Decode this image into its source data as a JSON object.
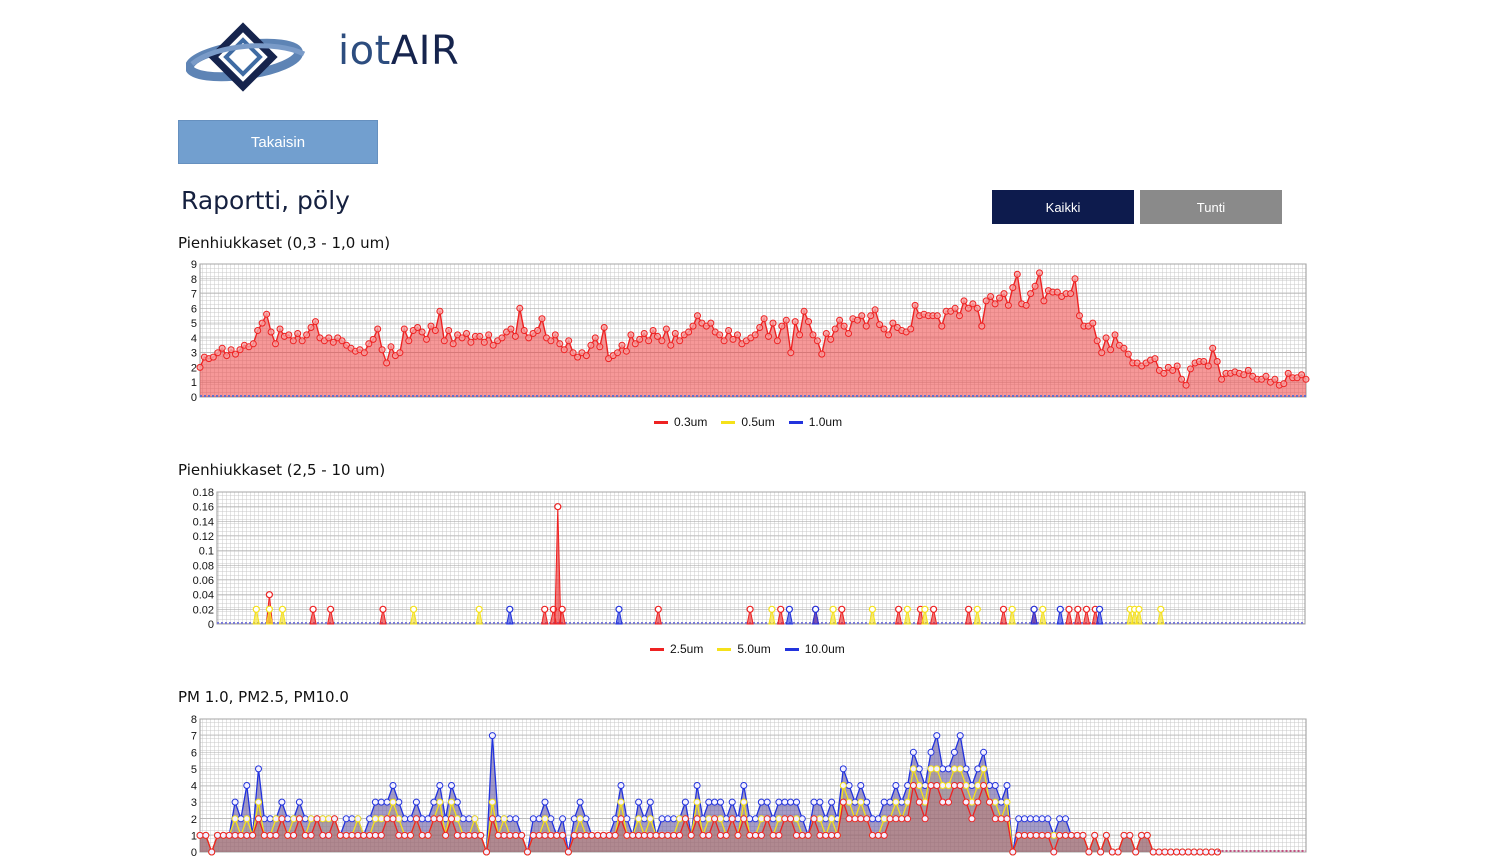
{
  "brand": {
    "name_prefix": "iot",
    "name_suffix": "AIR"
  },
  "nav": {
    "back_label": "Takaisin"
  },
  "page": {
    "title": "Raportti, pöly"
  },
  "range_toggle": {
    "all_label": "Kaikki",
    "hour_label": "Tunti",
    "selected": "Kaikki"
  },
  "colors": {
    "red": "#ee2222",
    "yellow": "#f5e11a",
    "blue": "#2233dd",
    "grid": "#c8c8c8",
    "accent_button": "#729fcf",
    "dark_button": "#0d1b4d"
  },
  "chart_data": [
    {
      "type": "area",
      "title": "Pienhiukkaset (0,3 - 1,0 um)",
      "ylim": [
        0,
        9
      ],
      "yticks": [
        "0",
        "1",
        "2",
        "3",
        "4",
        "5",
        "6",
        "7",
        "8",
        "9"
      ],
      "grid": true,
      "legend": "bottom",
      "series": [
        {
          "name": "0.3um",
          "color": "#ee2222",
          "values": [
            2.0,
            2.7,
            2.6,
            2.7,
            3.0,
            3.3,
            2.8,
            3.2,
            2.9,
            3.2,
            3.5,
            3.4,
            3.6,
            4.5,
            5.0,
            5.6,
            4.4,
            3.6,
            4.6,
            4.1,
            4.2,
            3.8,
            4.3,
            3.8,
            4.2,
            4.7,
            5.1,
            4.0,
            3.8,
            4.0,
            3.7,
            4.0,
            3.8,
            3.5,
            3.3,
            3.1,
            3.2,
            3.0,
            3.6,
            3.9,
            4.6,
            3.2,
            2.3,
            3.4,
            2.8,
            3.0,
            4.6,
            3.8,
            4.5,
            4.7,
            4.4,
            3.9,
            4.8,
            4.5,
            5.8,
            3.8,
            4.5,
            3.6,
            4.2,
            4.0,
            4.3,
            3.7,
            4.1,
            4.1,
            3.7,
            4.2,
            3.5,
            3.8,
            4.0,
            4.4,
            4.6,
            4.1,
            6.0,
            4.5,
            4.0,
            4.3,
            4.5,
            5.3,
            4.0,
            3.8,
            4.2,
            3.6,
            3.2,
            3.8,
            3.0,
            2.7,
            3.0,
            2.8,
            3.5,
            4.0,
            3.4,
            4.7,
            2.6,
            2.8,
            3.0,
            3.5,
            3.1,
            4.2,
            3.6,
            3.9,
            4.3,
            3.8,
            4.5,
            4.1,
            3.8,
            4.6,
            3.5,
            4.3,
            3.8,
            4.2,
            4.4,
            4.8,
            5.5,
            5.0,
            4.8,
            5.0,
            4.4,
            4.2,
            3.8,
            4.5,
            3.9,
            4.2,
            3.6,
            3.8,
            4.0,
            4.2,
            4.7,
            5.3,
            4.1,
            5.0,
            3.8,
            4.8,
            5.2,
            3.0,
            5.1,
            4.2,
            5.8,
            5.1,
            4.2,
            3.8,
            2.9,
            4.3,
            3.9,
            4.6,
            5.2,
            4.8,
            4.3,
            5.3,
            5.2,
            5.5,
            4.8,
            5.5,
            5.9,
            4.9,
            4.6,
            4.2,
            5.0,
            4.7,
            4.5,
            4.4,
            4.6,
            6.2,
            5.5,
            5.6,
            5.5,
            5.5,
            5.5,
            4.8,
            5.8,
            5.8,
            6.0,
            5.5,
            6.5,
            6.0,
            6.3,
            6.0,
            4.8,
            6.5,
            6.8,
            6.3,
            6.7,
            7.0,
            6.2,
            7.4,
            8.3,
            6.3,
            6.2,
            7.0,
            7.5,
            8.4,
            6.5,
            7.2,
            7.1,
            7.1,
            6.8,
            7.0,
            7.0,
            8.0,
            5.5,
            4.8,
            4.8,
            5.0,
            3.8,
            3.0,
            4.0,
            3.2,
            4.2,
            3.5,
            3.3,
            2.9,
            2.3,
            2.3,
            2.1,
            2.3,
            2.5,
            2.6,
            1.8,
            1.6,
            2.0,
            1.8,
            2.1,
            1.2,
            0.8,
            1.9,
            2.3,
            2.4,
            2.4,
            2.1,
            3.3,
            2.4,
            1.2,
            1.6,
            1.6,
            1.7,
            1.6,
            1.5,
            1.8,
            1.4,
            1.2,
            1.2,
            1.4,
            1.0,
            1.2,
            0.8,
            0.9,
            1.6,
            1.3,
            1.3,
            1.5,
            1.2
          ]
        },
        {
          "name": "0.5um",
          "color": "#f5e11a",
          "values": []
        },
        {
          "name": "1.0um",
          "color": "#2233dd",
          "values": []
        }
      ]
    },
    {
      "type": "area",
      "title": "Pienhiukkaset (2,5 - 10 um)",
      "ylim": [
        0,
        0.18
      ],
      "yticks": [
        "0",
        "0.02",
        "0.04",
        "0.06",
        "0.08",
        "0.1",
        "0.12",
        "0.14",
        "0.16",
        "0.18"
      ],
      "grid": true,
      "legend": "bottom",
      "n_points": 250,
      "series": [
        {
          "name": "2.5um",
          "color": "#ee2222",
          "points": [
            [
              12,
              0.04
            ],
            [
              22,
              0.02
            ],
            [
              26,
              0.02
            ],
            [
              38,
              0.02
            ],
            [
              75,
              0.02
            ],
            [
              77,
              0.02
            ],
            [
              78,
              0.16
            ],
            [
              79,
              0.02
            ],
            [
              101,
              0.02
            ],
            [
              122,
              0.02
            ],
            [
              129,
              0.02
            ],
            [
              137,
              0.02
            ],
            [
              143,
              0.02
            ],
            [
              156,
              0.02
            ],
            [
              161,
              0.02
            ],
            [
              164,
              0.02
            ],
            [
              172,
              0.02
            ],
            [
              180,
              0.02
            ],
            [
              187,
              0.02
            ],
            [
              195,
              0.02
            ],
            [
              197,
              0.02
            ],
            [
              199,
              0.02
            ],
            [
              201,
              0.02
            ]
          ]
        },
        {
          "name": "5.0um",
          "color": "#f5e11a",
          "points": [
            [
              9,
              0.02
            ],
            [
              12,
              0.02
            ],
            [
              15,
              0.02
            ],
            [
              45,
              0.02
            ],
            [
              60,
              0.02
            ],
            [
              127,
              0.02
            ],
            [
              141,
              0.02
            ],
            [
              150,
              0.02
            ],
            [
              158,
              0.02
            ],
            [
              162,
              0.02
            ],
            [
              174,
              0.02
            ],
            [
              182,
              0.02
            ],
            [
              189,
              0.02
            ],
            [
              209,
              0.02
            ],
            [
              210,
              0.02
            ],
            [
              211,
              0.02
            ],
            [
              216,
              0.02
            ]
          ]
        },
        {
          "name": "10.0um",
          "color": "#2233dd",
          "points": [
            [
              67,
              0.02
            ],
            [
              92,
              0.02
            ],
            [
              131,
              0.02
            ],
            [
              137,
              0.02
            ],
            [
              187,
              0.02
            ],
            [
              193,
              0.02
            ],
            [
              202,
              0.02
            ]
          ]
        }
      ]
    },
    {
      "type": "area",
      "title": "PM 1.0, PM2.5, PM10.0",
      "ylim": [
        0,
        8
      ],
      "yticks": [
        "0",
        "1",
        "2",
        "3",
        "4",
        "5",
        "6",
        "7",
        "8"
      ],
      "grid": true,
      "legend": "bottom",
      "series": [
        {
          "name": "PM 10.0",
          "color": "#2233dd",
          "values": [
            1,
            1,
            0,
            1,
            1,
            1,
            3,
            2,
            4,
            1,
            5,
            2,
            2,
            2,
            3,
            2,
            2,
            3,
            2,
            2,
            2,
            2,
            2,
            2,
            1,
            2,
            2,
            2,
            1,
            2,
            3,
            3,
            3,
            4,
            3,
            2,
            2,
            3,
            2,
            2,
            3,
            4,
            2,
            4,
            3,
            2,
            2,
            2,
            1,
            0,
            7,
            2,
            2,
            2,
            2,
            1,
            0,
            2,
            2,
            3,
            2,
            1,
            2,
            0,
            2,
            3,
            2,
            1,
            1,
            1,
            1,
            2,
            4,
            2,
            1,
            3,
            2,
            3,
            1,
            2,
            2,
            2,
            2,
            3,
            1,
            4,
            2,
            3,
            3,
            3,
            2,
            3,
            2,
            4,
            2,
            2,
            3,
            3,
            2,
            3,
            3,
            3,
            3,
            2,
            1,
            3,
            3,
            2,
            3,
            2,
            5,
            4,
            3,
            4,
            3,
            2,
            2,
            3,
            3,
            4,
            3,
            4,
            6,
            5,
            4,
            6,
            7,
            5,
            5,
            6,
            7,
            5,
            4,
            5,
            6,
            4,
            4,
            3,
            4,
            0,
            2,
            2,
            2,
            2,
            2,
            2,
            1,
            2,
            2,
            1,
            1,
            1,
            0,
            1,
            0,
            1,
            0,
            0,
            1,
            1,
            0,
            1,
            1,
            0,
            0,
            0,
            0,
            0,
            0,
            0,
            0,
            0,
            0,
            0,
            0
          ]
        },
        {
          "name": "PM 2.5",
          "color": "#f5e11a",
          "values": [
            1,
            1,
            0,
            1,
            1,
            1,
            2,
            1,
            2,
            1,
            3,
            1,
            1,
            2,
            2,
            1,
            2,
            2,
            1,
            2,
            2,
            2,
            2,
            2,
            1,
            1,
            1,
            2,
            1,
            1,
            2,
            2,
            2,
            3,
            2,
            1,
            1,
            2,
            1,
            1,
            2,
            3,
            1,
            3,
            2,
            1,
            1,
            2,
            1,
            0,
            3,
            1,
            2,
            1,
            1,
            1,
            0,
            1,
            1,
            2,
            1,
            1,
            1,
            0,
            1,
            2,
            1,
            1,
            1,
            1,
            1,
            1,
            3,
            1,
            1,
            2,
            1,
            2,
            1,
            1,
            1,
            1,
            2,
            2,
            1,
            3,
            1,
            2,
            2,
            2,
            1,
            2,
            1,
            3,
            1,
            1,
            2,
            2,
            1,
            2,
            2,
            2,
            2,
            1,
            1,
            2,
            2,
            1,
            2,
            1,
            4,
            3,
            2,
            3,
            2,
            1,
            1,
            2,
            2,
            3,
            2,
            3,
            5,
            4,
            3,
            5,
            5,
            4,
            4,
            5,
            5,
            4,
            3,
            4,
            5,
            3,
            3,
            2,
            3,
            0,
            1,
            1,
            1,
            1,
            1,
            1,
            1,
            1,
            1,
            1,
            1,
            1,
            0,
            1,
            0,
            1,
            0,
            0,
            1,
            1,
            0,
            1,
            1,
            0,
            0,
            0,
            0,
            0,
            0,
            0,
            0,
            0,
            0,
            0,
            0
          ]
        },
        {
          "name": "PM 1.0",
          "color": "#ee2222",
          "values": [
            1,
            1,
            0,
            1,
            1,
            1,
            1,
            1,
            1,
            1,
            2,
            1,
            1,
            1,
            2,
            1,
            1,
            2,
            1,
            1,
            2,
            1,
            1,
            2,
            1,
            1,
            1,
            1,
            1,
            1,
            1,
            1,
            2,
            2,
            1,
            1,
            1,
            2,
            1,
            1,
            2,
            2,
            1,
            2,
            1,
            1,
            1,
            1,
            1,
            0,
            2,
            1,
            1,
            1,
            1,
            1,
            0,
            1,
            1,
            1,
            1,
            1,
            1,
            0,
            1,
            1,
            1,
            1,
            1,
            1,
            1,
            1,
            2,
            1,
            1,
            1,
            1,
            1,
            1,
            1,
            1,
            1,
            1,
            2,
            1,
            2,
            1,
            1,
            2,
            1,
            1,
            2,
            1,
            2,
            1,
            1,
            1,
            2,
            1,
            1,
            2,
            2,
            1,
            1,
            1,
            2,
            1,
            1,
            1,
            1,
            3,
            2,
            2,
            2,
            2,
            1,
            1,
            1,
            2,
            2,
            2,
            2,
            4,
            3,
            2,
            4,
            4,
            3,
            3,
            4,
            4,
            3,
            2,
            3,
            4,
            3,
            2,
            2,
            2,
            0,
            1,
            1,
            1,
            1,
            1,
            1,
            0,
            1,
            1,
            1,
            1,
            1,
            0,
            1,
            0,
            1,
            0,
            0,
            1,
            1,
            0,
            1,
            1,
            0,
            0,
            0,
            0,
            0,
            0,
            0,
            0,
            0,
            0,
            0,
            0
          ]
        }
      ]
    }
  ]
}
